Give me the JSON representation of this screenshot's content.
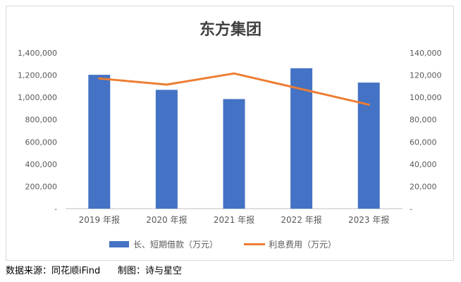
{
  "chart_data": {
    "type": "bar",
    "title": "东方集团",
    "categories": [
      "2019 年报",
      "2020 年报",
      "2021 年报",
      "2022 年报",
      "2023 年报"
    ],
    "series": [
      {
        "name": "长、短期借款（万元）",
        "type": "bar",
        "axis": "left",
        "color": "#4472C4",
        "values": [
          1203000,
          1068000,
          985000,
          1262000,
          1133000
        ]
      },
      {
        "name": "利息费用（万元）",
        "type": "line",
        "axis": "right",
        "color": "#ED7D31",
        "values": [
          117000,
          111500,
          121500,
          107500,
          93500
        ]
      }
    ],
    "y_left": {
      "ylim": [
        0,
        1400000
      ],
      "ticks": [
        "-",
        "200,000",
        "400,000",
        "600,000",
        "800,000",
        "1,000,000",
        "1,200,000",
        "1,400,000"
      ]
    },
    "y_right": {
      "ylim": [
        0,
        140000
      ],
      "ticks": [
        "-",
        "20,000",
        "40,000",
        "60,000",
        "80,000",
        "100,000",
        "120,000",
        "140,000"
      ]
    },
    "grid": false,
    "legend_position": "bottom"
  },
  "footer": {
    "source": "数据来源：同花顺iFind",
    "credit": "制图：诗与星空"
  }
}
